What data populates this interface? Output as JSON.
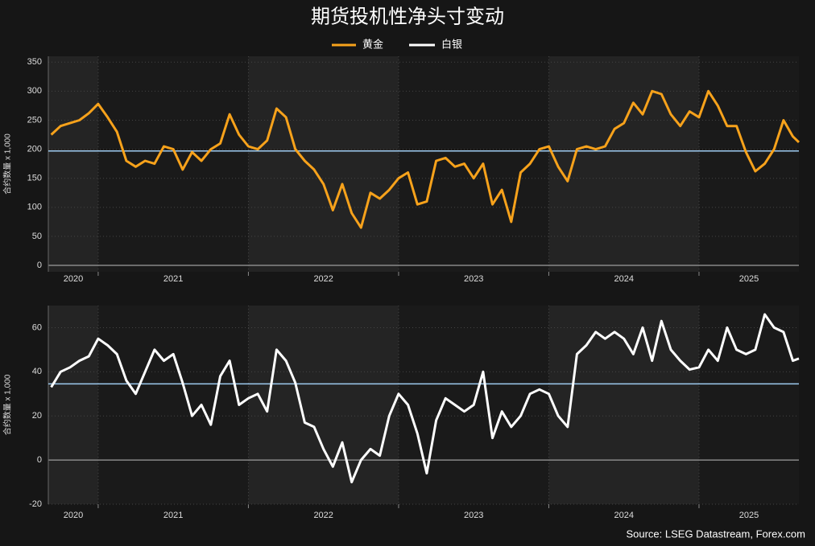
{
  "title": "期货投机性净头寸变动",
  "source": "Source: LSEG Datastream, Forex.com",
  "chart_data": [
    {
      "type": "line",
      "ylabel": "合约数量 x 1,000",
      "xlim": [
        2020.668,
        2025.665
      ],
      "xticks": [
        2020,
        2021,
        2022,
        2023,
        2024,
        2025
      ],
      "ylim": [
        -11,
        360
      ],
      "yticks": [
        0,
        50,
        100,
        150,
        200,
        250,
        300,
        350
      ],
      "grid": true,
      "reference": 197,
      "reference_color": "#9ecbf0",
      "x": [
        2020.6875,
        2020.75,
        2020.8125,
        2020.875,
        2020.9375,
        2021,
        2021.0625,
        2021.125,
        2021.1875,
        2021.25,
        2021.3125,
        2021.375,
        2021.4375,
        2021.5,
        2021.5625,
        2021.625,
        2021.6875,
        2021.75,
        2021.8125,
        2021.875,
        2021.9375,
        2022,
        2022.0625,
        2022.125,
        2022.1875,
        2022.25,
        2022.3125,
        2022.375,
        2022.4375,
        2022.5,
        2022.5625,
        2022.625,
        2022.6875,
        2022.75,
        2022.8125,
        2022.875,
        2022.9375,
        2023,
        2023.0625,
        2023.125,
        2023.1875,
        2023.25,
        2023.3125,
        2023.375,
        2023.4375,
        2023.5,
        2023.5625,
        2023.625,
        2023.6875,
        2023.75,
        2023.8125,
        2023.875,
        2023.9375,
        2024,
        2024.0625,
        2024.125,
        2024.1875,
        2024.25,
        2024.3125,
        2024.375,
        2024.4375,
        2024.5,
        2024.5625,
        2024.625,
        2024.6875,
        2024.75,
        2024.8125,
        2024.875,
        2024.9375,
        2025,
        2025.0625,
        2025.125,
        2025.1875,
        2025.25,
        2025.3125,
        2025.375,
        2025.4375,
        2025.5,
        2025.5625,
        2025.625,
        2025.665
      ],
      "series": [
        {
          "name": "黄金",
          "color": "#f7a21b",
          "values": [
            225,
            240,
            245,
            250,
            262,
            278,
            255,
            230,
            180,
            170,
            180,
            175,
            205,
            200,
            165,
            195,
            180,
            200,
            210,
            260,
            225,
            205,
            200,
            215,
            270,
            255,
            200,
            180,
            165,
            140,
            95,
            140,
            90,
            65,
            125,
            115,
            130,
            150,
            160,
            105,
            110,
            180,
            185,
            170,
            175,
            150,
            175,
            105,
            130,
            75,
            160,
            175,
            200,
            205,
            170,
            145,
            200,
            205,
            200,
            205,
            235,
            245,
            280,
            260,
            300,
            295,
            260,
            240,
            265,
            255,
            300,
            275,
            240,
            240,
            195,
            162,
            175,
            200,
            250,
            222,
            212
          ]
        }
      ]
    },
    {
      "type": "line",
      "ylabel": "合约数量 x 1,000",
      "xlim": [
        2020.668,
        2025.665
      ],
      "xticks": [
        2020,
        2021,
        2022,
        2023,
        2024,
        2025
      ],
      "ylim": [
        -20,
        70
      ],
      "yticks": [
        -20,
        0,
        20,
        40,
        60
      ],
      "grid": true,
      "reference": 34.5,
      "reference_color": "#9ecbf0",
      "x": [
        2020.6875,
        2020.75,
        2020.8125,
        2020.875,
        2020.9375,
        2021,
        2021.0625,
        2021.125,
        2021.1875,
        2021.25,
        2021.3125,
        2021.375,
        2021.4375,
        2021.5,
        2021.5625,
        2021.625,
        2021.6875,
        2021.75,
        2021.8125,
        2021.875,
        2021.9375,
        2022,
        2022.0625,
        2022.125,
        2022.1875,
        2022.25,
        2022.3125,
        2022.375,
        2022.4375,
        2022.5,
        2022.5625,
        2022.625,
        2022.6875,
        2022.75,
        2022.8125,
        2022.875,
        2022.9375,
        2023,
        2023.0625,
        2023.125,
        2023.1875,
        2023.25,
        2023.3125,
        2023.375,
        2023.4375,
        2023.5,
        2023.5625,
        2023.625,
        2023.6875,
        2023.75,
        2023.8125,
        2023.875,
        2023.9375,
        2024,
        2024.0625,
        2024.125,
        2024.1875,
        2024.25,
        2024.3125,
        2024.375,
        2024.4375,
        2024.5,
        2024.5625,
        2024.625,
        2024.6875,
        2024.75,
        2024.8125,
        2024.875,
        2024.9375,
        2025,
        2025.0625,
        2025.125,
        2025.1875,
        2025.25,
        2025.3125,
        2025.375,
        2025.4375,
        2025.5,
        2025.5625,
        2025.625,
        2025.665
      ],
      "series": [
        {
          "name": "白银",
          "color": "#ffffff",
          "values": [
            33,
            40,
            42,
            45,
            47,
            55,
            52,
            48,
            36,
            30,
            40,
            50,
            45,
            48,
            35,
            20,
            25,
            16,
            38,
            45,
            25,
            28,
            30,
            22,
            50,
            45,
            35,
            17,
            15,
            5,
            -3,
            8,
            -10,
            0,
            5,
            2,
            20,
            30,
            25,
            12,
            -6,
            18,
            28,
            25,
            22,
            25,
            40,
            10,
            22,
            15,
            20,
            30,
            32,
            30,
            20,
            15,
            48,
            52,
            58,
            55,
            58,
            55,
            48,
            60,
            45,
            63,
            50,
            45,
            41,
            42,
            50,
            45,
            60,
            50,
            48,
            50,
            66,
            60,
            58,
            45,
            46
          ]
        }
      ]
    }
  ]
}
